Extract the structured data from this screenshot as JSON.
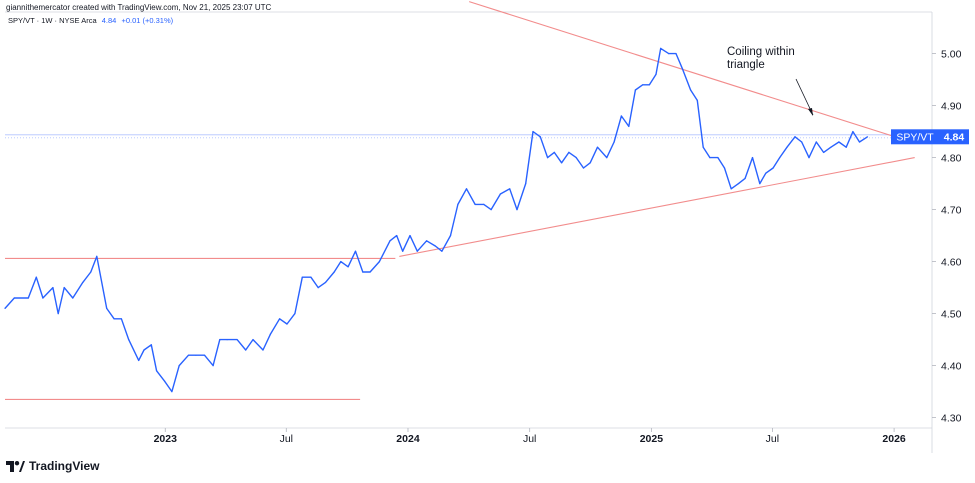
{
  "header": {
    "credit": "giannithemercator created with TradingView.com, Nov 21, 2025 23:07 UTC"
  },
  "legend": {
    "symbol": "SPY/VT · 1W · NYSE Arca",
    "last": "4.84",
    "change": "+0.01 (+0.31%)"
  },
  "badge": {
    "label": "SPY/VT",
    "value": "4.84"
  },
  "annotation": {
    "line1": "Coiling within",
    "line2": "triangle"
  },
  "footer": {
    "brand": "TradingView"
  },
  "colors": {
    "price": "#2962ff",
    "trendline": "#f28c8c",
    "badge_bg": "#2962ff",
    "hline": "#b2c4ff"
  },
  "chart_data": {
    "type": "line",
    "y_ticks": [
      4.3,
      4.4,
      4.5,
      4.6,
      4.7,
      4.8,
      4.9,
      5.0
    ],
    "y_tick_labels": [
      "4.30",
      "4.40",
      "4.50",
      "4.60",
      "4.70",
      "4.80",
      "4.90",
      "5.00"
    ],
    "ylim": [
      4.28,
      5.08
    ],
    "x_ticks": [
      "2022-12-31",
      "2023-07-01",
      "2023-12-31",
      "2024-07-01",
      "2024-12-31",
      "2025-07-01",
      "2025-12-31"
    ],
    "x_tick_labels": [
      "2023",
      "Jul",
      "2024",
      "Jul",
      "2025",
      "Jul",
      "2026"
    ],
    "xlim": [
      "2022-05-04",
      "2026-02-26"
    ],
    "series": [
      {
        "values": [
          [
            "2022-05-04",
            4.51
          ],
          [
            "2022-05-18",
            4.53
          ],
          [
            "2022-06-08",
            4.53
          ],
          [
            "2022-06-20",
            4.57
          ],
          [
            "2022-06-30",
            4.53
          ],
          [
            "2022-07-15",
            4.55
          ],
          [
            "2022-07-23",
            4.5
          ],
          [
            "2022-08-01",
            4.55
          ],
          [
            "2022-08-14",
            4.53
          ],
          [
            "2022-08-29",
            4.56
          ],
          [
            "2022-09-10",
            4.58
          ],
          [
            "2022-09-19",
            4.61
          ],
          [
            "2022-10-04",
            4.51
          ],
          [
            "2022-10-15",
            4.49
          ],
          [
            "2022-10-26",
            4.49
          ],
          [
            "2022-11-06",
            4.45
          ],
          [
            "2022-11-21",
            4.41
          ],
          [
            "2022-11-29",
            4.43
          ],
          [
            "2022-12-10",
            4.44
          ],
          [
            "2022-12-18",
            4.39
          ],
          [
            "2022-12-30",
            4.37
          ],
          [
            "2023-01-10",
            4.35
          ],
          [
            "2023-01-21",
            4.4
          ],
          [
            "2023-02-04",
            4.42
          ],
          [
            "2023-02-15",
            4.42
          ],
          [
            "2023-02-28",
            4.42
          ],
          [
            "2023-03-13",
            4.4
          ],
          [
            "2023-03-23",
            4.45
          ],
          [
            "2023-04-03",
            4.45
          ],
          [
            "2023-04-18",
            4.45
          ],
          [
            "2023-05-01",
            4.43
          ],
          [
            "2023-05-12",
            4.45
          ],
          [
            "2023-05-27",
            4.43
          ],
          [
            "2023-06-07",
            4.46
          ],
          [
            "2023-06-21",
            4.49
          ],
          [
            "2023-07-02",
            4.48
          ],
          [
            "2023-07-14",
            4.5
          ],
          [
            "2023-07-25",
            4.57
          ],
          [
            "2023-08-07",
            4.57
          ],
          [
            "2023-08-18",
            4.55
          ],
          [
            "2023-08-29",
            4.56
          ],
          [
            "2023-09-11",
            4.58
          ],
          [
            "2023-09-21",
            4.6
          ],
          [
            "2023-10-02",
            4.59
          ],
          [
            "2023-10-13",
            4.62
          ],
          [
            "2023-10-24",
            4.58
          ],
          [
            "2023-11-04",
            4.58
          ],
          [
            "2023-11-18",
            4.6
          ],
          [
            "2023-12-04",
            4.64
          ],
          [
            "2023-12-14",
            4.65
          ],
          [
            "2023-12-23",
            4.62
          ],
          [
            "2024-01-03",
            4.65
          ],
          [
            "2024-01-14",
            4.62
          ],
          [
            "2024-01-28",
            4.64
          ],
          [
            "2024-02-10",
            4.63
          ],
          [
            "2024-02-20",
            4.62
          ],
          [
            "2024-03-04",
            4.65
          ],
          [
            "2024-03-15",
            4.71
          ],
          [
            "2024-03-28",
            4.74
          ],
          [
            "2024-04-10",
            4.71
          ],
          [
            "2024-04-23",
            4.71
          ],
          [
            "2024-05-04",
            4.7
          ],
          [
            "2024-05-18",
            4.73
          ],
          [
            "2024-06-01",
            4.74
          ],
          [
            "2024-06-12",
            4.7
          ],
          [
            "2024-06-25",
            4.75
          ],
          [
            "2024-07-06",
            4.85
          ],
          [
            "2024-07-17",
            4.84
          ],
          [
            "2024-07-28",
            4.8
          ],
          [
            "2024-08-07",
            4.81
          ],
          [
            "2024-08-18",
            4.79
          ],
          [
            "2024-08-29",
            4.81
          ],
          [
            "2024-09-09",
            4.8
          ],
          [
            "2024-09-20",
            4.78
          ],
          [
            "2024-09-30",
            4.79
          ],
          [
            "2024-10-11",
            4.82
          ],
          [
            "2024-10-25",
            4.8
          ],
          [
            "2024-11-05",
            4.83
          ],
          [
            "2024-11-16",
            4.88
          ],
          [
            "2024-11-27",
            4.86
          ],
          [
            "2024-12-07",
            4.93
          ],
          [
            "2024-12-18",
            4.94
          ],
          [
            "2024-12-28",
            4.94
          ],
          [
            "2025-01-07",
            4.96
          ],
          [
            "2025-01-14",
            5.01
          ],
          [
            "2025-01-26",
            5.0
          ],
          [
            "2025-02-06",
            5.0
          ],
          [
            "2025-02-16",
            4.97
          ],
          [
            "2025-02-28",
            4.93
          ],
          [
            "2025-03-10",
            4.91
          ],
          [
            "2025-03-19",
            4.82
          ],
          [
            "2025-03-29",
            4.8
          ],
          [
            "2025-04-10",
            4.8
          ],
          [
            "2025-04-20",
            4.78
          ],
          [
            "2025-04-30",
            4.74
          ],
          [
            "2025-05-11",
            4.75
          ],
          [
            "2025-05-21",
            4.76
          ],
          [
            "2025-06-01",
            4.8
          ],
          [
            "2025-06-12",
            4.75
          ],
          [
            "2025-06-21",
            4.77
          ],
          [
            "2025-07-02",
            4.78
          ],
          [
            "2025-07-12",
            4.8
          ],
          [
            "2025-07-23",
            4.82
          ],
          [
            "2025-08-04",
            4.84
          ],
          [
            "2025-08-14",
            4.83
          ],
          [
            "2025-08-25",
            4.8
          ],
          [
            "2025-09-05",
            4.83
          ],
          [
            "2025-09-16",
            4.81
          ],
          [
            "2025-09-27",
            4.82
          ],
          [
            "2025-10-09",
            4.83
          ],
          [
            "2025-10-20",
            4.82
          ],
          [
            "2025-10-30",
            4.85
          ],
          [
            "2025-11-09",
            4.83
          ],
          [
            "2025-11-21",
            4.84
          ]
        ]
      }
    ],
    "trendlines": [
      {
        "from": [
          "2023-12-18",
          4.61
        ],
        "to": [
          "2026-01-31",
          4.8
        ]
      },
      {
        "from": [
          "2024-04-01",
          5.1
        ],
        "to": [
          "2026-01-26",
          4.83
        ]
      },
      {
        "from": [
          "2022-05-04",
          4.606
        ],
        "to": [
          "2023-12-12",
          4.606
        ]
      },
      {
        "from": [
          "2022-05-04",
          4.335
        ],
        "to": [
          "2023-10-20",
          4.335
        ]
      }
    ],
    "last_value": 4.84
  }
}
